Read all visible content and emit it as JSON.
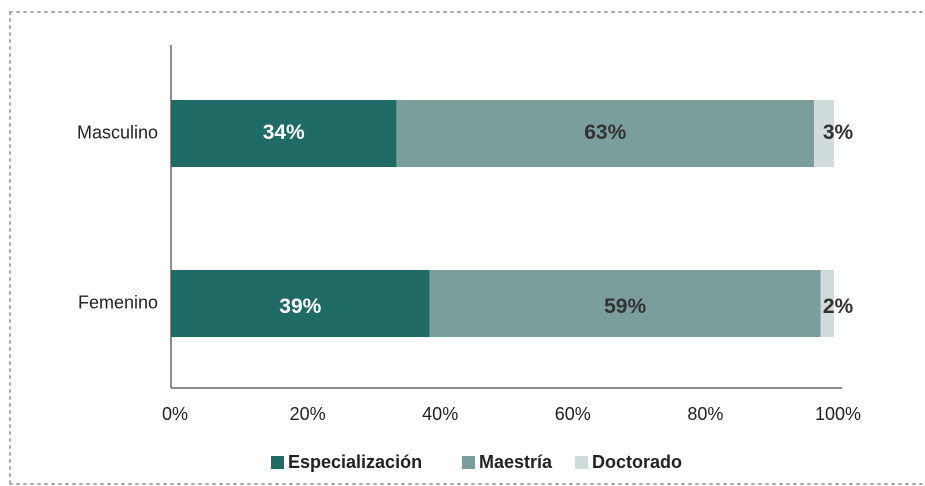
{
  "chart_data": {
    "type": "stacked-bar-horizontal",
    "categories": [
      "Masculino",
      "Femenino"
    ],
    "series": [
      {
        "name": "Especialización",
        "color": "#206b65",
        "values": [
          34,
          39
        ],
        "value_labels": [
          "34%",
          "39%"
        ]
      },
      {
        "name": "Maestría",
        "color": "#7a9e9c",
        "values": [
          63,
          59
        ],
        "value_labels": [
          "63%",
          "59%"
        ]
      },
      {
        "name": "Doctorado",
        "color": "#d0dcdc",
        "values": [
          3,
          2
        ],
        "value_labels": [
          "3%",
          "2%"
        ]
      }
    ],
    "xlim": [
      0,
      100
    ],
    "xticks": [
      {
        "value": 0,
        "label": "0%"
      },
      {
        "value": 20,
        "label": "20%"
      },
      {
        "value": 40,
        "label": "40%"
      },
      {
        "value": 60,
        "label": "60%"
      },
      {
        "value": 80,
        "label": "80%"
      },
      {
        "value": 100,
        "label": "100%"
      }
    ],
    "legend": "bottom"
  }
}
